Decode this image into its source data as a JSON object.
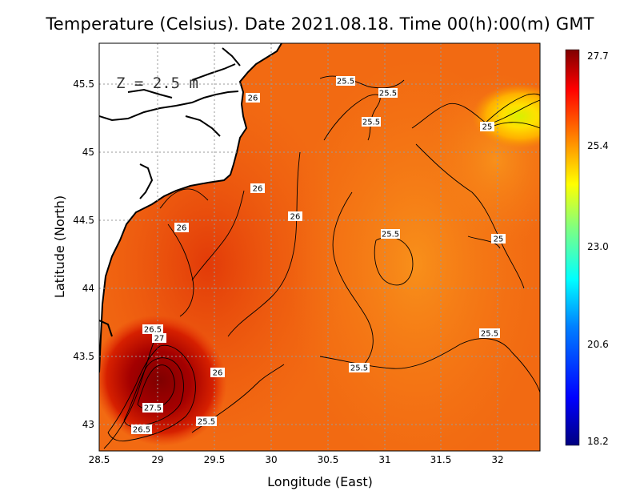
{
  "title": "Temperature (Celsius). Date 2021.08.18. Time 00(h):00(m)  GMT",
  "depth_label": "Z = 2.5 m",
  "x_axis": {
    "label": "Longitude (East)",
    "ticks": [
      "28.5",
      "29",
      "29.5",
      "30",
      "30.5",
      "31",
      "31.5",
      "32"
    ]
  },
  "y_axis": {
    "label": "Latitude (North)",
    "ticks": [
      "45.5",
      "45",
      "44.5",
      "44",
      "43.5",
      "43"
    ]
  },
  "colorbar": {
    "min": 18.2,
    "max": 27.7,
    "tick_labels": [
      "27.7",
      "25.4",
      "23.0",
      "20.6",
      "18.2"
    ],
    "colors": [
      "#00007f",
      "#0000ff",
      "#0080ff",
      "#00ffff",
      "#80ff80",
      "#ffff00",
      "#ff8000",
      "#ff0000",
      "#7f0000"
    ]
  },
  "contour_labels": [
    "25.5",
    "25.5",
    "26",
    "25.5",
    "25",
    "26",
    "26",
    "26",
    "25.5",
    "25",
    "26.5",
    "27",
    "25.5",
    "26",
    "25.5",
    "27.5",
    "26.5",
    "25.5"
  ],
  "colors": {
    "land": "#ffffff",
    "sea_base": "#f26a12",
    "coastline": "#000000",
    "grid": "#9a9a9a"
  }
}
